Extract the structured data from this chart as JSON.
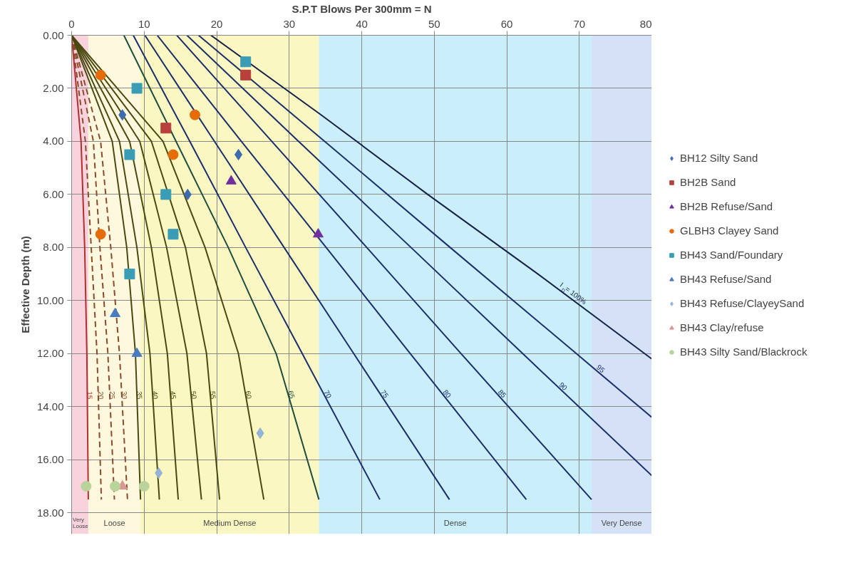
{
  "chart_data": {
    "type": "scatter",
    "xlabel": "S.P.T Blows Per 300mm = N",
    "ylabel": "Effective Depth (m)",
    "xlim": [
      0,
      80
    ],
    "ylim": [
      18.8,
      0
    ],
    "xticks": [
      0,
      10,
      20,
      30,
      40,
      50,
      60,
      70,
      80
    ],
    "yticks": [
      {
        "value": 0,
        "label": "0.00"
      },
      {
        "value": 2,
        "label": "2.00"
      },
      {
        "value": 4,
        "label": "4.00"
      },
      {
        "value": 6,
        "label": "6.00"
      },
      {
        "value": 8,
        "label": "8.00"
      },
      {
        "value": 10,
        "label": "10.00"
      },
      {
        "value": 12,
        "label": "12.00"
      },
      {
        "value": 14,
        "label": "14.00"
      },
      {
        "value": 16,
        "label": "16.00"
      },
      {
        "value": 18,
        "label": "18.00"
      }
    ],
    "grid": true,
    "legend": "right",
    "bands": [
      {
        "axis": "x",
        "from": 0,
        "to": 2.3,
        "label": "Very Loose",
        "color": "#f4b6c8"
      },
      {
        "axis": "x",
        "from": 2.3,
        "to": 9.5,
        "label": "Loose",
        "color": "#fdf5c8"
      },
      {
        "axis": "x",
        "from": 9.5,
        "to": 34.1,
        "label": "Medium Dense",
        "color": "#f7f29a"
      },
      {
        "axis": "x",
        "from": 34.1,
        "to": 71.7,
        "label": "Dense",
        "color": "#a8e4f7"
      },
      {
        "axis": "x",
        "from": 71.7,
        "to": 80,
        "label": "Very Dense",
        "color": "#b8cdf2"
      }
    ],
    "series": [
      {
        "name": "15",
        "type": "line",
        "color": "#b03030",
        "line_style": "solid",
        "x": [
          0,
          1.3,
          1.8,
          2.1,
          2.3
        ],
        "values": [
          0,
          4,
          8,
          12,
          17.5
        ]
      },
      {
        "name": "20",
        "type": "line",
        "color": "#8b4a2b",
        "line_style": "dashed",
        "x": [
          0,
          1.9,
          2.7,
          3.5,
          4.1
        ],
        "values": [
          0,
          4,
          8,
          12,
          17.5
        ]
      },
      {
        "name": "25",
        "type": "line",
        "color": "#8b4a2b",
        "line_style": "dashed",
        "x": [
          0,
          3.0,
          3.9,
          5.0,
          5.9
        ],
        "values": [
          0,
          4,
          8,
          12,
          17.5
        ]
      },
      {
        "name": "30",
        "type": "line",
        "color": "#8b4a2b",
        "line_style": "dashed",
        "x": [
          0,
          4.0,
          5.4,
          6.6,
          7.7
        ],
        "values": [
          0,
          4,
          8,
          12,
          17.5
        ]
      },
      {
        "name": "35",
        "type": "line",
        "color": "#4a4a10",
        "line_style": "solid",
        "x": [
          0,
          5.6,
          7.6,
          8.8,
          9.5
        ],
        "values": [
          0,
          4,
          8,
          12,
          17.5
        ]
      },
      {
        "name": "40",
        "type": "line",
        "color": "#4a4a10",
        "line_style": "solid",
        "x": [
          0,
          6.6,
          9.0,
          10.8,
          12.1
        ],
        "values": [
          0,
          4,
          8,
          12,
          17.5
        ]
      },
      {
        "name": "45",
        "type": "line",
        "color": "#4a4a10",
        "line_style": "solid",
        "x": [
          0,
          8.0,
          11.0,
          13.2,
          14.7
        ],
        "values": [
          0,
          4,
          8,
          12,
          17.5
        ]
      },
      {
        "name": "50",
        "type": "line",
        "color": "#4a4a10",
        "line_style": "solid",
        "x": [
          0,
          9.4,
          13.1,
          15.9,
          17.9
        ],
        "values": [
          0,
          4,
          8,
          12,
          17.5
        ]
      },
      {
        "name": "55",
        "type": "line",
        "color": "#4a4a10",
        "line_style": "solid",
        "x": [
          0,
          11.0,
          15.7,
          18.6,
          20.4
        ],
        "values": [
          0,
          4,
          8,
          12,
          17.5
        ]
      },
      {
        "name": "60",
        "type": "line",
        "color": "#4a4a10",
        "line_style": "solid",
        "x": [
          0,
          12.6,
          18.4,
          23.0,
          26.5
        ],
        "values": [
          0,
          4,
          8,
          12,
          17.5
        ]
      },
      {
        "name": "65",
        "type": "line",
        "color": "#1f4e3d",
        "line_style": "solid",
        "x": [
          7.2,
          14.4,
          21.6,
          28.2,
          34.1
        ],
        "values": [
          0,
          4,
          8,
          12,
          17.5
        ]
      },
      {
        "name": "70",
        "type": "line",
        "color": "#1a2f6b",
        "line_style": "solid",
        "x": [
          8.5,
          16.3,
          24.0,
          31.8,
          42.5
        ],
        "values": [
          0,
          4,
          8,
          12,
          17.5
        ]
      },
      {
        "name": "75",
        "type": "line",
        "color": "#1a2f6b",
        "line_style": "solid",
        "x": [
          10.1,
          19.7,
          29.3,
          38.9,
          52.1
        ],
        "values": [
          0,
          4,
          8,
          12,
          17.5
        ]
      },
      {
        "name": "80",
        "type": "line",
        "color": "#1a2f6b",
        "line_style": "solid",
        "x": [
          11.8,
          23.4,
          35.1,
          46.7,
          62.7
        ],
        "values": [
          0,
          4,
          8,
          12,
          17.5
        ]
      },
      {
        "name": "85",
        "type": "line",
        "color": "#1a2f6b",
        "line_style": "solid",
        "x": [
          14.5,
          27.6,
          40.7,
          53.7,
          71.7
        ],
        "values": [
          0,
          4,
          8,
          12,
          17.5
        ]
      },
      {
        "name": "90",
        "type": "line",
        "color": "#1a2f6b",
        "line_style": "solid",
        "x": [
          15.9,
          31.3,
          46.8,
          62.2,
          80
        ],
        "values": [
          0,
          4,
          8,
          12,
          16.6
        ]
      },
      {
        "name": "95",
        "type": "line",
        "color": "#1a2f6b",
        "line_style": "solid",
        "x": [
          17.5,
          34.9,
          52.2,
          69.6,
          80
        ],
        "values": [
          0,
          4,
          8,
          12,
          14.4
        ]
      },
      {
        "name": "I$_{D}$ = 100%",
        "type": "line",
        "color": "#14204a",
        "line_style": "solid",
        "x": [
          19.2,
          34.4,
          49.1,
          64.3,
          80
        ],
        "values": [
          0,
          3,
          6,
          9,
          12.2
        ]
      },
      {
        "name": "BH12 Silty Sand",
        "marker": "diamond",
        "color": "#3d6bb0",
        "x": [
          7,
          23,
          16
        ],
        "values": [
          3,
          4.5,
          6
        ]
      },
      {
        "name": "BH2B Sand",
        "marker": "square",
        "color": "#b8403d",
        "x": [
          24,
          13
        ],
        "values": [
          1.5,
          3.5
        ]
      },
      {
        "name": "BH2B Refuse/Sand",
        "marker": "triangle",
        "color": "#7030a0",
        "x": [
          22,
          34
        ],
        "values": [
          5.5,
          7.5
        ]
      },
      {
        "name": "GLBH3 Clayey Sand",
        "marker": "circle",
        "color": "#e46c0a",
        "x": [
          4,
          17,
          14,
          4
        ],
        "values": [
          1.5,
          3,
          4.5,
          7.5
        ]
      },
      {
        "name": "BH43 Sand/Foundary",
        "marker": "square",
        "color": "#3a9db5",
        "x": [
          24,
          9,
          8,
          13,
          14,
          8
        ],
        "values": [
          1,
          2,
          4.5,
          6,
          7.5,
          9
        ]
      },
      {
        "name": "BH43 Refuse/Sand",
        "marker": "triangle",
        "color": "#4a7cc0",
        "x": [
          6,
          9
        ],
        "values": [
          10.5,
          12
        ]
      },
      {
        "name": "BH43 Refuse/ClayeySand",
        "marker": "diamond",
        "color": "#95b3d7",
        "x": [
          26,
          12
        ],
        "values": [
          15,
          16.5
        ]
      },
      {
        "name": "BH43 Clay/refuse",
        "marker": "triangle",
        "color": "#d99694",
        "x": [
          7
        ],
        "values": [
          17
        ]
      },
      {
        "name": "BH43 Silty Sand/Blackrock",
        "marker": "circle",
        "color": "#b9d39a",
        "x": [
          2,
          6,
          10
        ],
        "values": [
          17,
          17,
          17
        ]
      }
    ]
  }
}
